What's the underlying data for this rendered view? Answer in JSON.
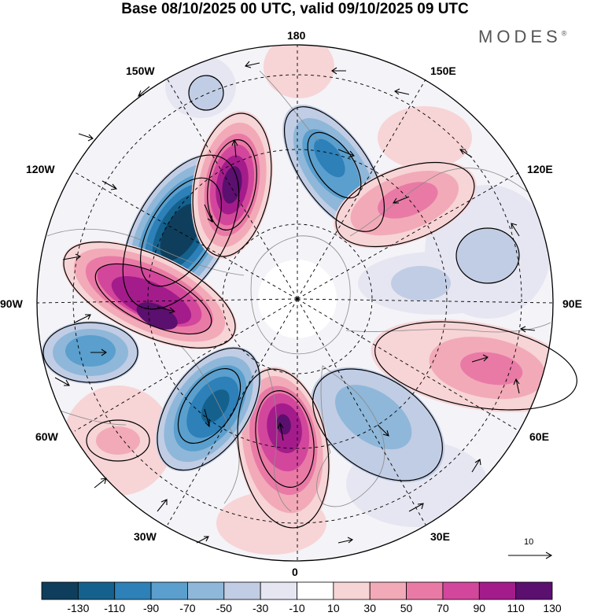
{
  "header": {
    "title": "Base 08/10/2025 00 UTC, valid 09/10/2025 09 UTC",
    "brand": "MODES",
    "brand_mark": "®"
  },
  "longitude_labels": {
    "lon_180": "180",
    "lon_150e": "150E",
    "lon_120e": "120E",
    "lon_90e": "90E",
    "lon_60e": "60E",
    "lon_30e": "30E",
    "lon_0": "0",
    "lon_30w": "30W",
    "lon_60w": "60W",
    "lon_90w": "90W",
    "lon_120w": "120W",
    "lon_150w": "150W"
  },
  "colorbar": {
    "ticks": [
      "-130",
      "-110",
      "-90",
      "-70",
      "-50",
      "-30",
      "-10",
      "10",
      "30",
      "50",
      "70",
      "90",
      "110",
      "130"
    ],
    "colors": [
      "#0f3e5c",
      "#14618e",
      "#2d80b8",
      "#5a9fcd",
      "#8fb7d9",
      "#c1cde4",
      "#e6e6f2",
      "#ffffff",
      "#f7d4d6",
      "#f2aab8",
      "#e97aa6",
      "#d2479c",
      "#a41c8b",
      "#5b0f6e"
    ]
  },
  "vector_reference": {
    "label": "10"
  }
}
